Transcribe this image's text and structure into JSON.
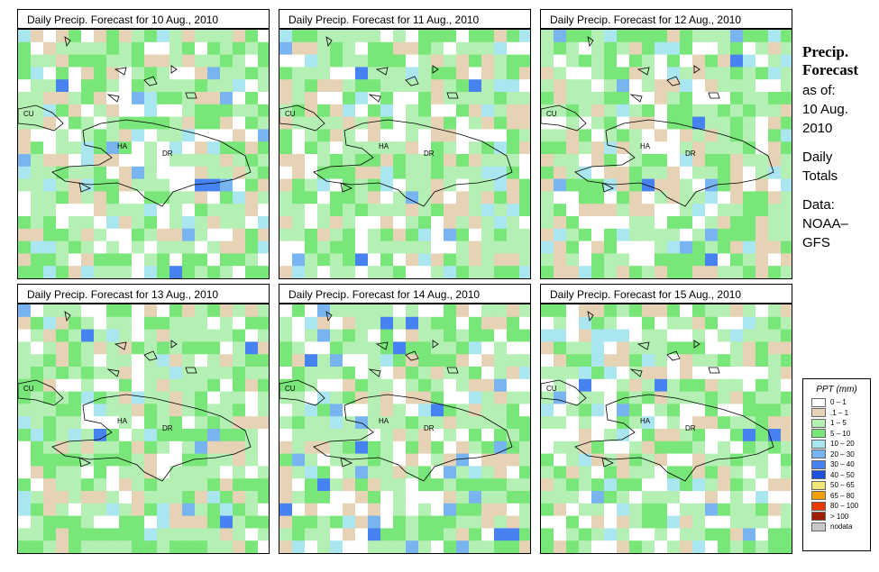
{
  "panels": [
    {
      "title": "Daily Precip. Forecast for  10 Aug., 2010",
      "seed": 11
    },
    {
      "title": "Daily Precip. Forecast for  11 Aug., 2010",
      "seed": 23
    },
    {
      "title": "Daily Precip. Forecast for  12 Aug., 2010",
      "seed": 37
    },
    {
      "title": "Daily Precip. Forecast for  13 Aug., 2010",
      "seed": 41
    },
    {
      "title": "Daily Precip. Forecast for  14 Aug., 2010",
      "seed": 53
    },
    {
      "title": "Daily Precip. Forecast for  15 Aug., 2010",
      "seed": 67
    }
  ],
  "map_labels": {
    "cuba": "CU",
    "haiti": "HA",
    "dominican_republic": "DR"
  },
  "side": {
    "title_line1": "Precip.",
    "title_line2": "Forecast",
    "as_of": "as of:",
    "date_line1": "10 Aug.",
    "date_line2": "2010",
    "totals_line1": "Daily",
    "totals_line2": "Totals",
    "data_line1": "Data:",
    "data_line2": "NOAA–",
    "data_line3": "GFS"
  },
  "legend": {
    "title": "PPT (mm)",
    "items": [
      {
        "label": "0 – 1",
        "color": "#ffffff"
      },
      {
        "label": ".1 – 1",
        "color": "#e6d2b4"
      },
      {
        "label": "1 – 5",
        "color": "#b4f0b4"
      },
      {
        "label": "5 – 10",
        "color": "#78e678"
      },
      {
        "label": "10 – 20",
        "color": "#aae6f0"
      },
      {
        "label": "20 – 30",
        "color": "#78b4f0"
      },
      {
        "label": "30 – 40",
        "color": "#4682f0"
      },
      {
        "label": "40 – 50",
        "color": "#1e50dc"
      },
      {
        "label": "50 – 65",
        "color": "#f0e678"
      },
      {
        "label": "65 – 80",
        "color": "#f0a000"
      },
      {
        "label": "80 – 100",
        "color": "#e63c00"
      },
      {
        "label": "> 100",
        "color": "#a01e00"
      },
      {
        "label": "nodata",
        "color": "#c8c8c8"
      }
    ]
  }
}
